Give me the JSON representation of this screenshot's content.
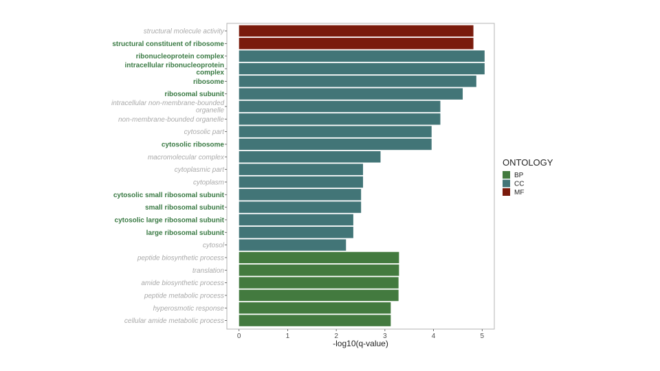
{
  "chart_data": {
    "type": "bar",
    "orientation": "horizontal",
    "xlabel": "-log10(q-value)",
    "xlim": [
      -0.25,
      5.25
    ],
    "xticks": [
      0,
      1,
      2,
      3,
      4,
      5
    ],
    "legend": {
      "title": "ONTOLOGY",
      "position": "right",
      "entries": [
        {
          "name": "BP",
          "color": "#437a3f"
        },
        {
          "name": "CC",
          "color": "#427577"
        },
        {
          "name": "MF",
          "color": "#7a1b0c"
        }
      ]
    },
    "categories": [
      {
        "label": "structural molecule activity",
        "lines": [
          "structural molecule activity"
        ],
        "value": 4.82,
        "ontology": "MF",
        "style": "faded"
      },
      {
        "label": "structural constituent of ribosome",
        "lines": [
          "structural constituent of ribosome"
        ],
        "value": 4.82,
        "ontology": "MF",
        "style": "bold"
      },
      {
        "label": "ribonucleoprotein complex",
        "lines": [
          "ribonucleoprotein complex"
        ],
        "value": 5.05,
        "ontology": "CC",
        "style": "bold"
      },
      {
        "label": "intracellular ribonucleoprotein complex",
        "lines": [
          "intracellular ribonucleoprotein",
          "complex"
        ],
        "value": 5.05,
        "ontology": "CC",
        "style": "bold"
      },
      {
        "label": "ribosome",
        "lines": [
          "ribosome"
        ],
        "value": 4.88,
        "ontology": "CC",
        "style": "bold"
      },
      {
        "label": "ribosomal subunit",
        "lines": [
          "ribosomal subunit"
        ],
        "value": 4.6,
        "ontology": "CC",
        "style": "bold"
      },
      {
        "label": "intracellular non-membrane-bounded organelle",
        "lines": [
          "intracellular non-membrane-bounded",
          "organelle"
        ],
        "value": 4.14,
        "ontology": "CC",
        "style": "faded"
      },
      {
        "label": "non-membrane-bounded organelle",
        "lines": [
          "non-membrane-bounded organelle"
        ],
        "value": 4.14,
        "ontology": "CC",
        "style": "faded"
      },
      {
        "label": "cytosolic part",
        "lines": [
          "cytosolic part"
        ],
        "value": 3.96,
        "ontology": "CC",
        "style": "faded"
      },
      {
        "label": "cytosolic ribosome",
        "lines": [
          "cytosolic ribosome"
        ],
        "value": 3.96,
        "ontology": "CC",
        "style": "bold"
      },
      {
        "label": "macromolecular complex",
        "lines": [
          "macromolecular complex"
        ],
        "value": 2.91,
        "ontology": "CC",
        "style": "faded"
      },
      {
        "label": "cytoplasmic part",
        "lines": [
          "cytoplasmic part"
        ],
        "value": 2.55,
        "ontology": "CC",
        "style": "faded"
      },
      {
        "label": "cytoplasm",
        "lines": [
          "cytoplasm"
        ],
        "value": 2.55,
        "ontology": "CC",
        "style": "faded"
      },
      {
        "label": "cytosolic small ribosomal subunit",
        "lines": [
          "cytosolic small ribosomal subunit"
        ],
        "value": 2.51,
        "ontology": "CC",
        "style": "bold"
      },
      {
        "label": "small ribosomal subunit",
        "lines": [
          "small ribosomal subunit"
        ],
        "value": 2.51,
        "ontology": "CC",
        "style": "bold"
      },
      {
        "label": "cytosolic large ribosomal subunit",
        "lines": [
          "cytosolic large ribosomal subunit"
        ],
        "value": 2.35,
        "ontology": "CC",
        "style": "bold"
      },
      {
        "label": "large ribosomal subunit",
        "lines": [
          "large ribosomal subunit"
        ],
        "value": 2.35,
        "ontology": "CC",
        "style": "bold"
      },
      {
        "label": "cytosol",
        "lines": [
          "cytosol"
        ],
        "value": 2.2,
        "ontology": "CC",
        "style": "faded"
      },
      {
        "label": "peptide biosynthetic process",
        "lines": [
          "peptide biosynthetic process"
        ],
        "value": 3.29,
        "ontology": "BP",
        "style": "faded"
      },
      {
        "label": "translation",
        "lines": [
          "translation"
        ],
        "value": 3.29,
        "ontology": "BP",
        "style": "faded"
      },
      {
        "label": "amide biosynthetic process",
        "lines": [
          "amide biosynthetic process"
        ],
        "value": 3.28,
        "ontology": "BP",
        "style": "faded"
      },
      {
        "label": "peptide metabolic process",
        "lines": [
          "peptide metabolic process"
        ],
        "value": 3.28,
        "ontology": "BP",
        "style": "faded"
      },
      {
        "label": "hyperosmotic response",
        "lines": [
          "hyperosmotic response"
        ],
        "value": 3.12,
        "ontology": "BP",
        "style": "faded"
      },
      {
        "label": "cellular amide metabolic process",
        "lines": [
          "cellular amide metabolic process"
        ],
        "value": 3.12,
        "ontology": "BP",
        "style": "faded"
      }
    ]
  }
}
